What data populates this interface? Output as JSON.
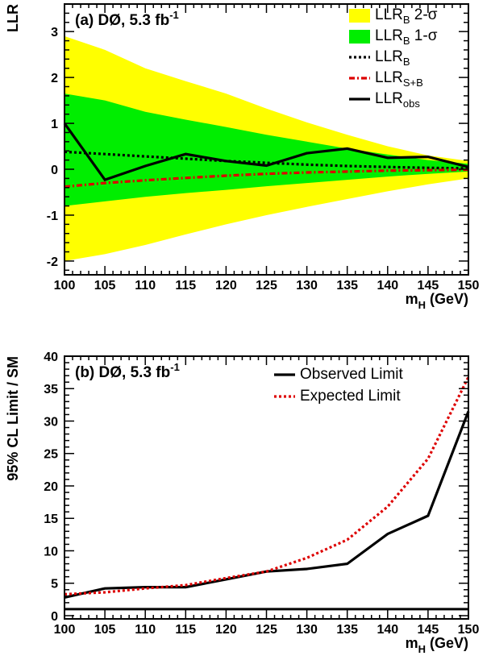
{
  "chart_data": [
    {
      "type": "area",
      "panel_label": "(a) DØ, 5.3 fb",
      "panel_label_sup": "-1",
      "xlabel": "m",
      "xlabel_sub": "H",
      "xlabel_unit": "(GeV)",
      "ylabel": "LLR",
      "xlim": [
        100,
        150
      ],
      "ylim": [
        -2.3,
        3.6
      ],
      "x_ticks": [
        100,
        105,
        110,
        115,
        120,
        125,
        130,
        135,
        140,
        145,
        150
      ],
      "y_ticks": [
        -2,
        -1,
        0,
        1,
        2,
        3
      ],
      "x": [
        100,
        105,
        110,
        115,
        120,
        125,
        130,
        135,
        140,
        145,
        150
      ],
      "bands": [
        {
          "name": "LLR_B 2-σ",
          "legend_main": "LLR",
          "legend_sub": "B",
          "legend_suffix": " 2-σ",
          "color": "#ffff00",
          "upper": [
            2.9,
            2.6,
            2.2,
            1.92,
            1.65,
            1.32,
            1.02,
            0.75,
            0.5,
            0.3,
            0.18
          ],
          "lower": [
            -2.0,
            -1.85,
            -1.65,
            -1.42,
            -1.2,
            -1.0,
            -0.82,
            -0.65,
            -0.48,
            -0.33,
            -0.2
          ]
        },
        {
          "name": "LLR_B 1-σ",
          "legend_main": "LLR",
          "legend_sub": "B",
          "legend_suffix": " 1-σ",
          "color": "#00ee00",
          "upper": [
            1.65,
            1.5,
            1.25,
            1.08,
            0.92,
            0.75,
            0.6,
            0.45,
            0.32,
            0.2,
            0.12
          ],
          "lower": [
            -0.8,
            -0.7,
            -0.6,
            -0.52,
            -0.45,
            -0.37,
            -0.3,
            -0.23,
            -0.16,
            -0.1,
            -0.05
          ]
        }
      ],
      "series": [
        {
          "name": "LLR_B",
          "legend_main": "LLR",
          "legend_sub": "B",
          "color": "#000000",
          "dash": "dotted",
          "values": [
            0.38,
            0.33,
            0.28,
            0.23,
            0.18,
            0.14,
            0.1,
            0.07,
            0.05,
            0.03,
            0.02
          ]
        },
        {
          "name": "LLR_S+B",
          "legend_main": "LLR",
          "legend_sub": "S+B",
          "color": "#dd0000",
          "dash": "dashdot",
          "values": [
            -0.38,
            -0.3,
            -0.24,
            -0.19,
            -0.14,
            -0.1,
            -0.07,
            -0.05,
            -0.03,
            -0.02,
            -0.01
          ]
        },
        {
          "name": "LLR_obs",
          "legend_main": "LLR",
          "legend_sub": "obs",
          "color": "#000000",
          "dash": "solid",
          "values": [
            1.0,
            -0.23,
            0.07,
            0.33,
            0.18,
            0.08,
            0.35,
            0.45,
            0.25,
            0.27,
            0.05
          ]
        }
      ],
      "legend_position": "top-right"
    },
    {
      "type": "line",
      "panel_label": "(b) DØ, 5.3 fb",
      "panel_label_sup": "-1",
      "xlabel": "m",
      "xlabel_sub": "H",
      "xlabel_unit": "(GeV)",
      "ylabel": "95% CL Limit / SM",
      "xlim": [
        100,
        150
      ],
      "ylim": [
        -0.5,
        40
      ],
      "x_ticks": [
        100,
        105,
        110,
        115,
        120,
        125,
        130,
        135,
        140,
        145,
        150
      ],
      "y_ticks": [
        0,
        5,
        10,
        15,
        20,
        25,
        30,
        35,
        40
      ],
      "x": [
        100,
        105,
        110,
        115,
        120,
        125,
        130,
        135,
        140,
        145,
        150
      ],
      "series": [
        {
          "name": "Observed Limit",
          "color": "#000000",
          "dash": "solid",
          "values": [
            2.8,
            4.2,
            4.4,
            4.4,
            5.6,
            6.8,
            7.2,
            8.0,
            12.6,
            15.4,
            31.5
          ]
        },
        {
          "name": "Expected Limit",
          "color": "#dd0000",
          "dash": "dotted",
          "values": [
            3.3,
            3.6,
            4.2,
            4.7,
            5.8,
            6.8,
            8.9,
            11.7,
            16.8,
            24.2,
            36.8
          ]
        }
      ],
      "reference_line": {
        "value": 1.0,
        "color": "#000000"
      },
      "legend_position": "top-right"
    }
  ]
}
